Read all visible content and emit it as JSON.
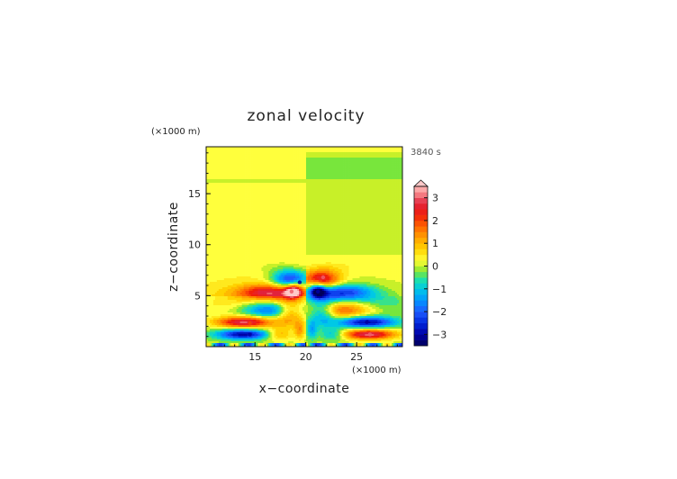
{
  "chart_data": {
    "type": "heatmap",
    "title": "zonal velocity",
    "xlabel": "x−coordinate",
    "ylabel": "z−coordinate",
    "x_unit": "(×1000 m)",
    "y_unit": "(×1000 m)",
    "time_label": "3840 s",
    "xlim": [
      10.2,
      29.5
    ],
    "ylim": [
      0,
      19.6
    ],
    "x_ticks": [
      {
        "v": 15,
        "label": "15"
      },
      {
        "v": 20,
        "label": "20"
      },
      {
        "v": 25,
        "label": "25"
      }
    ],
    "y_ticks": [
      {
        "v": 5,
        "label": "5"
      },
      {
        "v": 10,
        "label": "10"
      },
      {
        "v": 15,
        "label": "15"
      }
    ],
    "colorbar": {
      "min": -3.5,
      "max": 3.5,
      "step": 0.25,
      "extend": "max",
      "ticks": [
        {
          "v": 3,
          "label": "3"
        },
        {
          "v": 2,
          "label": "2"
        },
        {
          "v": 1,
          "label": "1"
        },
        {
          "v": 0,
          "label": "0"
        },
        {
          "v": -1,
          "label": "−1"
        },
        {
          "v": -2,
          "label": "−2"
        },
        {
          "v": -3,
          "label": "−3"
        }
      ]
    },
    "grid": false,
    "field_features": [
      {
        "x": 18.6,
        "z": 5.4,
        "value": 3.0
      },
      {
        "x": 21.7,
        "z": 6.8,
        "value": 3.0
      },
      {
        "x": 19.4,
        "z": 6.3,
        "value": -3.0
      },
      {
        "x": 21.2,
        "z": 5.4,
        "value": -3.0
      },
      {
        "x": 26.3,
        "z": 1.2,
        "value": 3.0
      },
      {
        "x": 26.0,
        "z": 2.4,
        "value": -3.0
      },
      {
        "x": 14.5,
        "z": 1.2,
        "value": -3.0
      },
      {
        "x": 14.5,
        "z": 2.3,
        "value": 2.0
      }
    ]
  }
}
